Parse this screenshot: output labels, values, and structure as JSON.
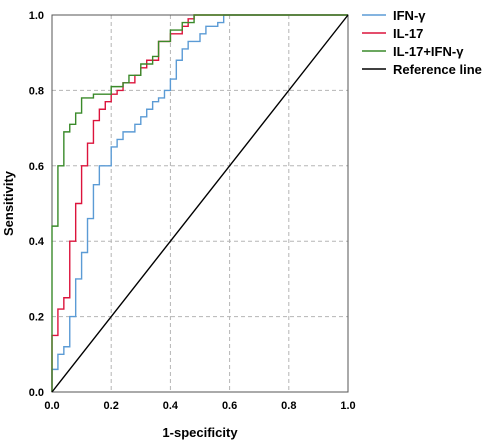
{
  "chart_data": {
    "type": "line",
    "xlabel": "1-specificity",
    "ylabel": "Sensitivity",
    "xlim": [
      0,
      1
    ],
    "ylim": [
      0,
      1
    ],
    "grid": true,
    "legend_position": "top-right",
    "x_ticks": [
      "0.0",
      "0.2",
      "0.4",
      "0.6",
      "0.8",
      "1.0"
    ],
    "y_ticks": [
      "0.0",
      "0.2",
      "0.4",
      "0.6",
      "0.8",
      "1.0"
    ],
    "series": [
      {
        "name": "IFN-γ",
        "color": "#5b9bd5",
        "x": [
          0,
          0,
          0.02,
          0.02,
          0.04,
          0.04,
          0.06,
          0.06,
          0.08,
          0.08,
          0.1,
          0.1,
          0.12,
          0.12,
          0.14,
          0.14,
          0.16,
          0.16,
          0.2,
          0.2,
          0.22,
          0.22,
          0.24,
          0.24,
          0.28,
          0.28,
          0.3,
          0.3,
          0.32,
          0.32,
          0.34,
          0.34,
          0.36,
          0.36,
          0.38,
          0.38,
          0.4,
          0.4,
          0.42,
          0.42,
          0.44,
          0.44,
          0.46,
          0.46,
          0.5,
          0.5,
          0.52,
          0.52,
          0.56,
          0.56,
          0.58,
          0.58,
          1
        ],
        "y": [
          0,
          0.06,
          0.06,
          0.1,
          0.1,
          0.12,
          0.12,
          0.2,
          0.2,
          0.3,
          0.3,
          0.37,
          0.37,
          0.46,
          0.46,
          0.55,
          0.55,
          0.6,
          0.6,
          0.65,
          0.65,
          0.67,
          0.67,
          0.69,
          0.69,
          0.71,
          0.71,
          0.73,
          0.73,
          0.75,
          0.75,
          0.77,
          0.77,
          0.78,
          0.78,
          0.8,
          0.8,
          0.83,
          0.83,
          0.88,
          0.88,
          0.91,
          0.91,
          0.93,
          0.93,
          0.95,
          0.95,
          0.97,
          0.97,
          0.98,
          0.98,
          1,
          1
        ]
      },
      {
        "name": "IL-17",
        "color": "#dc143c",
        "x": [
          0,
          0,
          0.02,
          0.02,
          0.04,
          0.04,
          0.06,
          0.06,
          0.08,
          0.08,
          0.1,
          0.1,
          0.12,
          0.12,
          0.14,
          0.14,
          0.16,
          0.16,
          0.18,
          0.18,
          0.2,
          0.2,
          0.22,
          0.22,
          0.24,
          0.24,
          0.28,
          0.28,
          0.3,
          0.3,
          0.32,
          0.32,
          0.36,
          0.36,
          0.4,
          0.4,
          0.44,
          0.44,
          0.46,
          0.46,
          0.48,
          0.48,
          1
        ],
        "y": [
          0,
          0.15,
          0.15,
          0.22,
          0.22,
          0.25,
          0.25,
          0.4,
          0.4,
          0.5,
          0.5,
          0.6,
          0.6,
          0.66,
          0.66,
          0.72,
          0.72,
          0.75,
          0.75,
          0.77,
          0.77,
          0.79,
          0.79,
          0.8,
          0.8,
          0.82,
          0.82,
          0.84,
          0.84,
          0.86,
          0.86,
          0.88,
          0.88,
          0.93,
          0.93,
          0.95,
          0.95,
          0.97,
          0.97,
          0.99,
          0.99,
          1,
          1
        ]
      },
      {
        "name": "IL-17+IFN-γ",
        "color": "#3a8a2a",
        "x": [
          0,
          0,
          0.02,
          0.02,
          0.04,
          0.04,
          0.06,
          0.06,
          0.08,
          0.08,
          0.1,
          0.1,
          0.14,
          0.14,
          0.2,
          0.2,
          0.24,
          0.24,
          0.26,
          0.26,
          0.3,
          0.3,
          0.34,
          0.34,
          0.36,
          0.36,
          0.4,
          0.4,
          0.44,
          0.44,
          0.48,
          0.48,
          1
        ],
        "y": [
          0,
          0.44,
          0.44,
          0.6,
          0.6,
          0.69,
          0.69,
          0.71,
          0.71,
          0.74,
          0.74,
          0.78,
          0.78,
          0.79,
          0.79,
          0.81,
          0.81,
          0.82,
          0.82,
          0.84,
          0.84,
          0.87,
          0.87,
          0.89,
          0.89,
          0.93,
          0.93,
          0.96,
          0.96,
          0.98,
          0.98,
          1,
          1
        ]
      },
      {
        "name": "Reference line",
        "color": "#000000",
        "x": [
          0,
          1
        ],
        "y": [
          0,
          1
        ]
      }
    ]
  }
}
